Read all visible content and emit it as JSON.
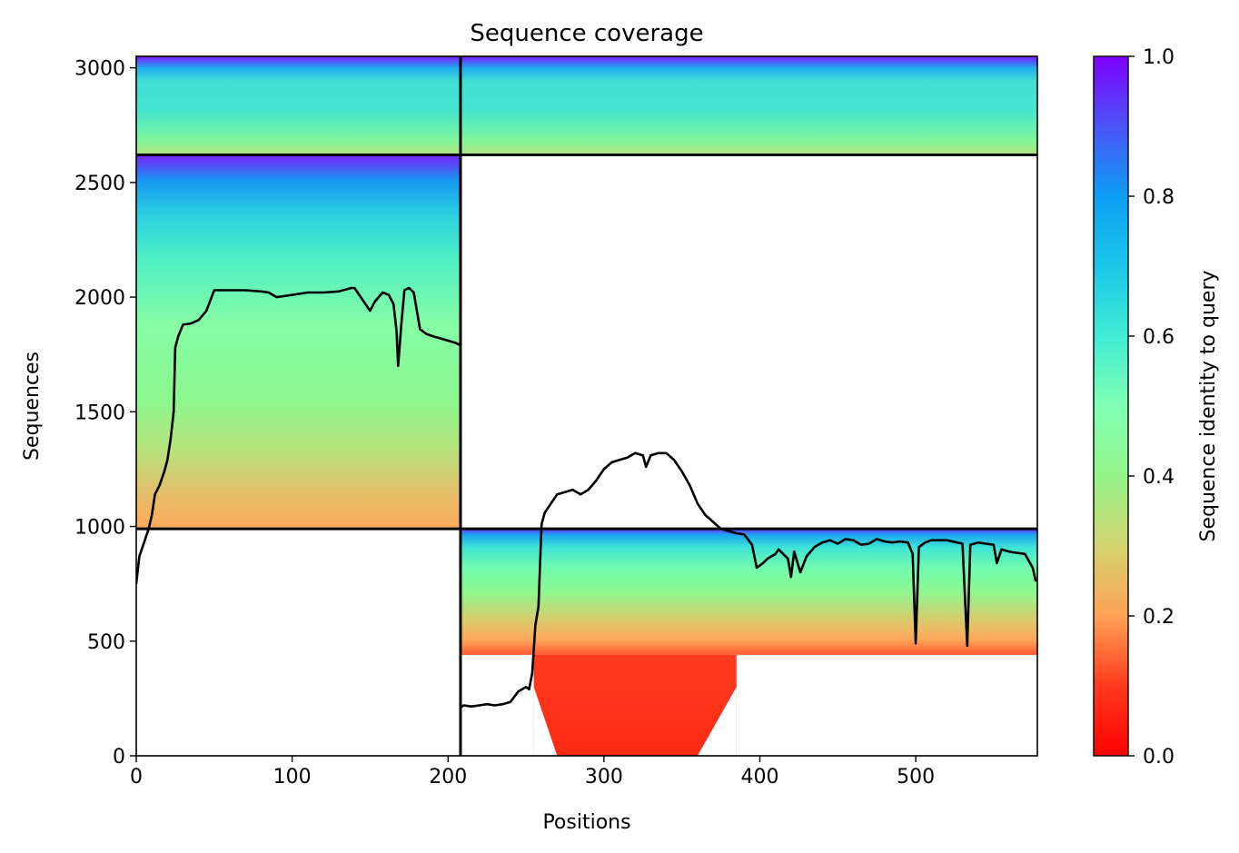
{
  "chart_data": {
    "type": "heatmap",
    "title": "Sequence coverage",
    "xlabel": "Positions",
    "ylabel": "Sequences",
    "xlim": [
      0,
      578
    ],
    "ylim": [
      0,
      3050
    ],
    "x_ticks": [
      "0",
      "100",
      "200",
      "300",
      "400",
      "500"
    ],
    "y_ticks": [
      "0",
      "500",
      "1000",
      "1500",
      "2000",
      "2500",
      "3000"
    ],
    "colorbar": {
      "label": "Sequence identity to query",
      "range": [
        0.0,
        1.0
      ],
      "ticks": [
        "0.0",
        "0.2",
        "0.4",
        "0.6",
        "0.8",
        "1.0"
      ],
      "colormap": "rainbow_r"
    },
    "grid": false,
    "dividers": {
      "x": [
        208
      ],
      "y": [
        990,
        2620
      ]
    },
    "blocks": [
      {
        "name": "block-top-left",
        "x": [
          0,
          208
        ],
        "y": [
          2620,
          3050
        ],
        "identity_bottom": 0.4,
        "identity_top": 1.0
      },
      {
        "name": "block-top-right",
        "x": [
          208,
          578
        ],
        "y": [
          2620,
          3050
        ],
        "identity_bottom": 0.4,
        "identity_top": 1.0
      },
      {
        "name": "block-middle-left",
        "x": [
          0,
          208
        ],
        "y": [
          990,
          2620
        ],
        "identity_bottom": 0.22,
        "identity_top": 1.0
      },
      {
        "name": "block-lower-right",
        "x": [
          208,
          578
        ],
        "y": [
          440,
          990
        ],
        "identity_bottom": 0.22,
        "identity_top": 1.0
      },
      {
        "name": "block-red-tail",
        "x": [
          255,
          385
        ],
        "y": [
          0,
          440
        ],
        "identity_bottom": 0.05,
        "identity_top": 0.1
      }
    ],
    "coverage_line": {
      "name": "Coverage",
      "points": [
        [
          0,
          750
        ],
        [
          2,
          870
        ],
        [
          5,
          930
        ],
        [
          8,
          990
        ],
        [
          10,
          1050
        ],
        [
          12,
          1140
        ],
        [
          15,
          1180
        ],
        [
          18,
          1240
        ],
        [
          20,
          1290
        ],
        [
          22,
          1380
        ],
        [
          24,
          1500
        ],
        [
          25,
          1780
        ],
        [
          27,
          1830
        ],
        [
          30,
          1880
        ],
        [
          35,
          1885
        ],
        [
          40,
          1900
        ],
        [
          45,
          1940
        ],
        [
          50,
          2030
        ],
        [
          60,
          2030
        ],
        [
          70,
          2030
        ],
        [
          80,
          2025
        ],
        [
          85,
          2020
        ],
        [
          90,
          2000
        ],
        [
          100,
          2010
        ],
        [
          110,
          2020
        ],
        [
          120,
          2020
        ],
        [
          130,
          2025
        ],
        [
          138,
          2040
        ],
        [
          140,
          2040
        ],
        [
          145,
          1990
        ],
        [
          148,
          1960
        ],
        [
          150,
          1940
        ],
        [
          153,
          1980
        ],
        [
          158,
          2020
        ],
        [
          162,
          2010
        ],
        [
          165,
          1970
        ],
        [
          167,
          1850
        ],
        [
          168,
          1700
        ],
        [
          170,
          1880
        ],
        [
          172,
          2030
        ],
        [
          175,
          2040
        ],
        [
          178,
          2020
        ],
        [
          182,
          1860
        ],
        [
          186,
          1840
        ],
        [
          190,
          1830
        ],
        [
          195,
          1820
        ],
        [
          200,
          1810
        ],
        [
          205,
          1800
        ],
        [
          208,
          1790
        ],
        [
          208,
          210
        ],
        [
          210,
          220
        ],
        [
          215,
          215
        ],
        [
          220,
          220
        ],
        [
          225,
          225
        ],
        [
          230,
          220
        ],
        [
          235,
          225
        ],
        [
          240,
          235
        ],
        [
          245,
          280
        ],
        [
          250,
          300
        ],
        [
          252,
          290
        ],
        [
          254,
          360
        ],
        [
          256,
          570
        ],
        [
          258,
          650
        ],
        [
          260,
          1010
        ],
        [
          262,
          1060
        ],
        [
          266,
          1100
        ],
        [
          270,
          1140
        ],
        [
          280,
          1160
        ],
        [
          285,
          1140
        ],
        [
          290,
          1160
        ],
        [
          295,
          1200
        ],
        [
          300,
          1250
        ],
        [
          305,
          1280
        ],
        [
          310,
          1290
        ],
        [
          315,
          1300
        ],
        [
          320,
          1320
        ],
        [
          325,
          1310
        ],
        [
          327,
          1260
        ],
        [
          330,
          1310
        ],
        [
          335,
          1320
        ],
        [
          340,
          1320
        ],
        [
          345,
          1290
        ],
        [
          350,
          1240
        ],
        [
          355,
          1180
        ],
        [
          360,
          1100
        ],
        [
          365,
          1050
        ],
        [
          370,
          1020
        ],
        [
          375,
          990
        ],
        [
          380,
          980
        ],
        [
          385,
          970
        ],
        [
          390,
          965
        ],
        [
          395,
          920
        ],
        [
          398,
          820
        ],
        [
          402,
          840
        ],
        [
          405,
          860
        ],
        [
          410,
          880
        ],
        [
          412,
          900
        ],
        [
          418,
          860
        ],
        [
          420,
          780
        ],
        [
          422,
          890
        ],
        [
          426,
          800
        ],
        [
          430,
          870
        ],
        [
          435,
          910
        ],
        [
          440,
          930
        ],
        [
          445,
          940
        ],
        [
          450,
          925
        ],
        [
          455,
          945
        ],
        [
          460,
          940
        ],
        [
          465,
          920
        ],
        [
          470,
          925
        ],
        [
          475,
          945
        ],
        [
          480,
          935
        ],
        [
          485,
          930
        ],
        [
          490,
          935
        ],
        [
          495,
          930
        ],
        [
          498,
          880
        ],
        [
          500,
          490
        ],
        [
          502,
          910
        ],
        [
          506,
          930
        ],
        [
          510,
          940
        ],
        [
          520,
          940
        ],
        [
          530,
          925
        ],
        [
          533,
          480
        ],
        [
          535,
          920
        ],
        [
          540,
          930
        ],
        [
          545,
          925
        ],
        [
          550,
          920
        ],
        [
          552,
          840
        ],
        [
          555,
          900
        ],
        [
          560,
          890
        ],
        [
          565,
          885
        ],
        [
          570,
          880
        ],
        [
          575,
          820
        ],
        [
          577,
          760
        ]
      ]
    }
  }
}
